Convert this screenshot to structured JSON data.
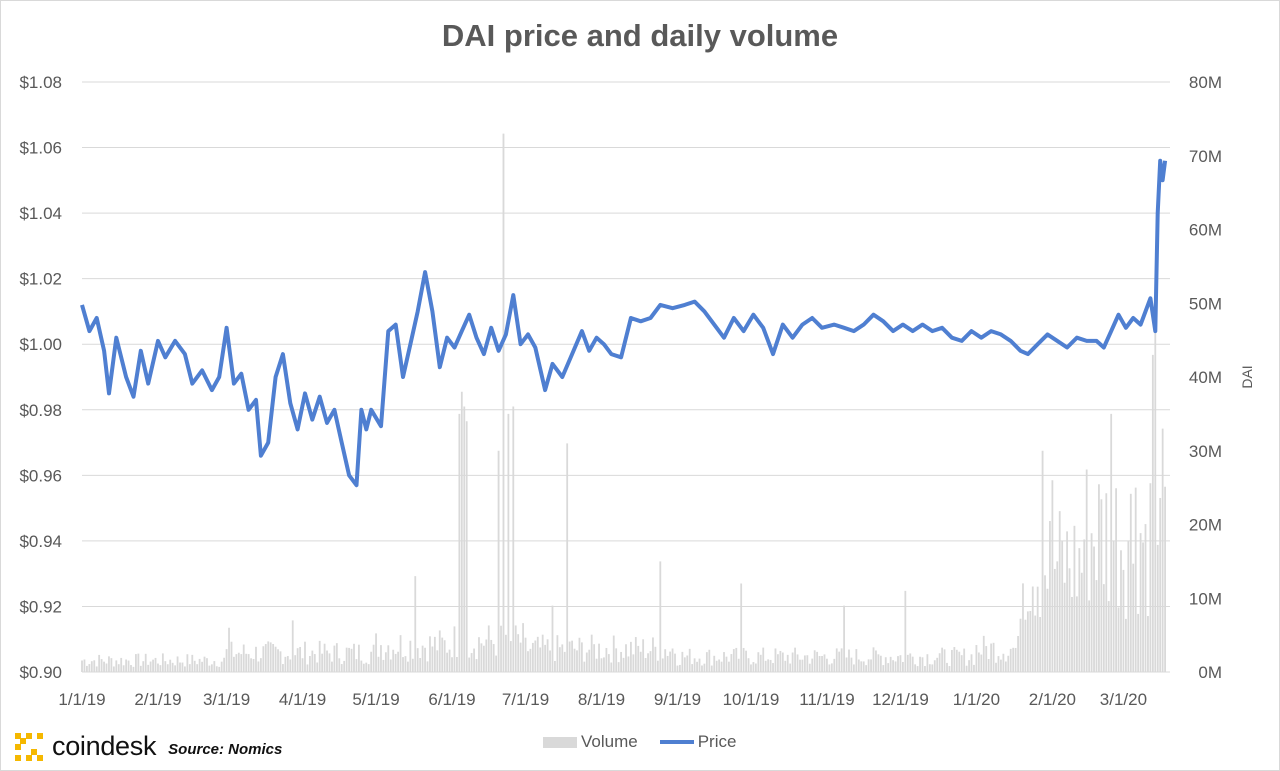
{
  "header": {
    "title": "DAI price and daily volume"
  },
  "brand": {
    "logo_text": "coindesk",
    "source": "Source: Nomics"
  },
  "legend": {
    "volume_label": "Volume",
    "price_label": "Price"
  },
  "colors": {
    "price": "#4f7fd1",
    "volume": "#d9d9d9",
    "grid": "#d9d9d9",
    "text": "#595959",
    "logo": "#f5b800"
  },
  "chart_data": {
    "type": "bar+line",
    "title": "DAI price and daily volume",
    "ylabel": "",
    "y2label": "DAI",
    "ylim": [
      0.9,
      1.08
    ],
    "y2lim": [
      0,
      80
    ],
    "grid": true,
    "legend_position": "bottom",
    "yticks": [
      "$0.90",
      "$0.92",
      "$0.94",
      "$0.96",
      "$0.98",
      "$1.00",
      "$1.02",
      "$1.04",
      "$1.06",
      "$1.08"
    ],
    "y2ticks": [
      "0M",
      "10M",
      "20M",
      "30M",
      "40M",
      "50M",
      "60M",
      "70M",
      "80M"
    ],
    "xticks": [
      "1/1/19",
      "2/1/19",
      "3/1/19",
      "4/1/19",
      "5/1/19",
      "6/1/19",
      "7/1/19",
      "8/1/19",
      "9/1/19",
      "10/1/19",
      "11/1/19",
      "12/1/19",
      "1/1/20",
      "2/1/20",
      "3/1/20"
    ],
    "series": [
      {
        "name": "Price",
        "kind": "line",
        "axis": "left",
        "points": [
          [
            "2019-01-01",
            1.012
          ],
          [
            "2019-01-04",
            1.004
          ],
          [
            "2019-01-07",
            1.008
          ],
          [
            "2019-01-10",
            0.998
          ],
          [
            "2019-01-12",
            0.985
          ],
          [
            "2019-01-15",
            1.002
          ],
          [
            "2019-01-19",
            0.99
          ],
          [
            "2019-01-22",
            0.984
          ],
          [
            "2019-01-25",
            0.998
          ],
          [
            "2019-01-28",
            0.988
          ],
          [
            "2019-02-01",
            1.001
          ],
          [
            "2019-02-04",
            0.996
          ],
          [
            "2019-02-08",
            1.001
          ],
          [
            "2019-02-12",
            0.997
          ],
          [
            "2019-02-15",
            0.988
          ],
          [
            "2019-02-19",
            0.992
          ],
          [
            "2019-02-23",
            0.986
          ],
          [
            "2019-02-26",
            0.99
          ],
          [
            "2019-03-01",
            1.005
          ],
          [
            "2019-03-04",
            0.988
          ],
          [
            "2019-03-07",
            0.991
          ],
          [
            "2019-03-10",
            0.98
          ],
          [
            "2019-03-13",
            0.983
          ],
          [
            "2019-03-15",
            0.966
          ],
          [
            "2019-03-18",
            0.97
          ],
          [
            "2019-03-21",
            0.99
          ],
          [
            "2019-03-24",
            0.997
          ],
          [
            "2019-03-27",
            0.982
          ],
          [
            "2019-03-30",
            0.974
          ],
          [
            "2019-04-02",
            0.985
          ],
          [
            "2019-04-05",
            0.977
          ],
          [
            "2019-04-08",
            0.984
          ],
          [
            "2019-04-11",
            0.976
          ],
          [
            "2019-04-14",
            0.98
          ],
          [
            "2019-04-17",
            0.97
          ],
          [
            "2019-04-20",
            0.96
          ],
          [
            "2019-04-23",
            0.957
          ],
          [
            "2019-04-25",
            0.98
          ],
          [
            "2019-04-27",
            0.974
          ],
          [
            "2019-04-29",
            0.98
          ],
          [
            "2019-05-03",
            0.975
          ],
          [
            "2019-05-06",
            1.004
          ],
          [
            "2019-05-09",
            1.006
          ],
          [
            "2019-05-12",
            0.99
          ],
          [
            "2019-05-15",
            1.0
          ],
          [
            "2019-05-18",
            1.01
          ],
          [
            "2019-05-21",
            1.022
          ],
          [
            "2019-05-24",
            1.01
          ],
          [
            "2019-05-27",
            0.993
          ],
          [
            "2019-05-30",
            1.002
          ],
          [
            "2019-06-02",
            0.999
          ],
          [
            "2019-06-05",
            1.004
          ],
          [
            "2019-06-08",
            1.009
          ],
          [
            "2019-06-11",
            1.002
          ],
          [
            "2019-06-14",
            0.997
          ],
          [
            "2019-06-17",
            1.005
          ],
          [
            "2019-06-20",
            0.998
          ],
          [
            "2019-06-23",
            1.003
          ],
          [
            "2019-06-26",
            1.015
          ],
          [
            "2019-06-29",
            1.0
          ],
          [
            "2019-07-02",
            1.003
          ],
          [
            "2019-07-05",
            0.999
          ],
          [
            "2019-07-09",
            0.986
          ],
          [
            "2019-07-12",
            0.994
          ],
          [
            "2019-07-16",
            0.99
          ],
          [
            "2019-07-20",
            0.997
          ],
          [
            "2019-07-24",
            1.004
          ],
          [
            "2019-07-27",
            0.998
          ],
          [
            "2019-07-30",
            1.002
          ],
          [
            "2019-08-02",
            1.0
          ],
          [
            "2019-08-05",
            0.997
          ],
          [
            "2019-08-09",
            0.996
          ],
          [
            "2019-08-13",
            1.008
          ],
          [
            "2019-08-17",
            1.007
          ],
          [
            "2019-08-21",
            1.008
          ],
          [
            "2019-08-25",
            1.012
          ],
          [
            "2019-08-30",
            1.011
          ],
          [
            "2019-09-04",
            1.012
          ],
          [
            "2019-09-08",
            1.013
          ],
          [
            "2019-09-12",
            1.01
          ],
          [
            "2019-09-16",
            1.006
          ],
          [
            "2019-09-20",
            1.002
          ],
          [
            "2019-09-24",
            1.008
          ],
          [
            "2019-09-28",
            1.004
          ],
          [
            "2019-10-02",
            1.009
          ],
          [
            "2019-10-06",
            1.005
          ],
          [
            "2019-10-10",
            0.997
          ],
          [
            "2019-10-14",
            1.006
          ],
          [
            "2019-10-18",
            1.002
          ],
          [
            "2019-10-22",
            1.006
          ],
          [
            "2019-10-26",
            1.008
          ],
          [
            "2019-10-30",
            1.005
          ],
          [
            "2019-11-04",
            1.006
          ],
          [
            "2019-11-08",
            1.005
          ],
          [
            "2019-11-12",
            1.004
          ],
          [
            "2019-11-16",
            1.006
          ],
          [
            "2019-11-20",
            1.009
          ],
          [
            "2019-11-24",
            1.007
          ],
          [
            "2019-11-28",
            1.004
          ],
          [
            "2019-12-02",
            1.006
          ],
          [
            "2019-12-06",
            1.004
          ],
          [
            "2019-12-10",
            1.006
          ],
          [
            "2019-12-14",
            1.004
          ],
          [
            "2019-12-18",
            1.005
          ],
          [
            "2019-12-22",
            1.002
          ],
          [
            "2019-12-26",
            1.001
          ],
          [
            "2019-12-30",
            1.004
          ],
          [
            "2020-01-03",
            1.002
          ],
          [
            "2020-01-07",
            1.004
          ],
          [
            "2020-01-11",
            1.003
          ],
          [
            "2020-01-15",
            1.001
          ],
          [
            "2020-01-19",
            0.998
          ],
          [
            "2020-01-22",
            0.997
          ],
          [
            "2020-01-26",
            1.0
          ],
          [
            "2020-01-30",
            1.003
          ],
          [
            "2020-02-03",
            1.001
          ],
          [
            "2020-02-07",
            0.999
          ],
          [
            "2020-02-11",
            1.002
          ],
          [
            "2020-02-15",
            1.001
          ],
          [
            "2020-02-19",
            1.001
          ],
          [
            "2020-02-22",
            0.999
          ],
          [
            "2020-02-25",
            1.004
          ],
          [
            "2020-02-28",
            1.009
          ],
          [
            "2020-03-02",
            1.005
          ],
          [
            "2020-03-05",
            1.008
          ],
          [
            "2020-03-08",
            1.006
          ],
          [
            "2020-03-10",
            1.01
          ],
          [
            "2020-03-12",
            1.014
          ],
          [
            "2020-03-14",
            1.004
          ],
          [
            "2020-03-15",
            1.04
          ],
          [
            "2020-03-16",
            1.056
          ],
          [
            "2020-03-17",
            1.05
          ],
          [
            "2020-03-18",
            1.056
          ]
        ]
      },
      {
        "name": "Volume",
        "kind": "bar",
        "axis": "right",
        "unit": "M",
        "segments": [
          {
            "from": "2019-01-01",
            "to": "2019-02-28",
            "level": 1.5
          },
          {
            "from": "2019-03-01",
            "to": "2019-04-30",
            "level": 2.5
          },
          {
            "from": "2019-05-01",
            "to": "2019-05-31",
            "level": 3.5
          },
          {
            "from": "2019-06-01",
            "to": "2019-06-30",
            "level": 4
          },
          {
            "from": "2019-07-01",
            "to": "2019-08-31",
            "level": 3
          },
          {
            "from": "2019-09-01",
            "to": "2019-12-31",
            "level": 2
          },
          {
            "from": "2020-01-01",
            "to": "2020-01-18",
            "level": 3
          },
          {
            "from": "2020-01-19",
            "to": "2020-02-13",
            "level": 14
          },
          {
            "from": "2020-02-14",
            "to": "2020-03-18",
            "level": 18
          }
        ],
        "peaks": [
          [
            "2019-06-04",
            35
          ],
          [
            "2019-06-05",
            38
          ],
          [
            "2019-06-06",
            36
          ],
          [
            "2019-06-07",
            34
          ],
          [
            "2019-06-20",
            30
          ],
          [
            "2019-06-22",
            73
          ],
          [
            "2019-06-24",
            35
          ],
          [
            "2019-06-26",
            36
          ],
          [
            "2019-05-17",
            13
          ],
          [
            "2019-03-02",
            6
          ],
          [
            "2019-03-28",
            7
          ],
          [
            "2019-07-18",
            31
          ],
          [
            "2019-07-12",
            9
          ],
          [
            "2019-08-25",
            15
          ],
          [
            "2019-09-27",
            12
          ],
          [
            "2019-11-08",
            9
          ],
          [
            "2019-12-03",
            11
          ],
          [
            "2020-01-28",
            30
          ],
          [
            "2020-02-01",
            26
          ],
          [
            "2020-02-25",
            35
          ],
          [
            "2020-03-06",
            25
          ],
          [
            "2020-03-13",
            43
          ],
          [
            "2020-03-14",
            46
          ],
          [
            "2020-03-17",
            33
          ]
        ]
      }
    ]
  }
}
